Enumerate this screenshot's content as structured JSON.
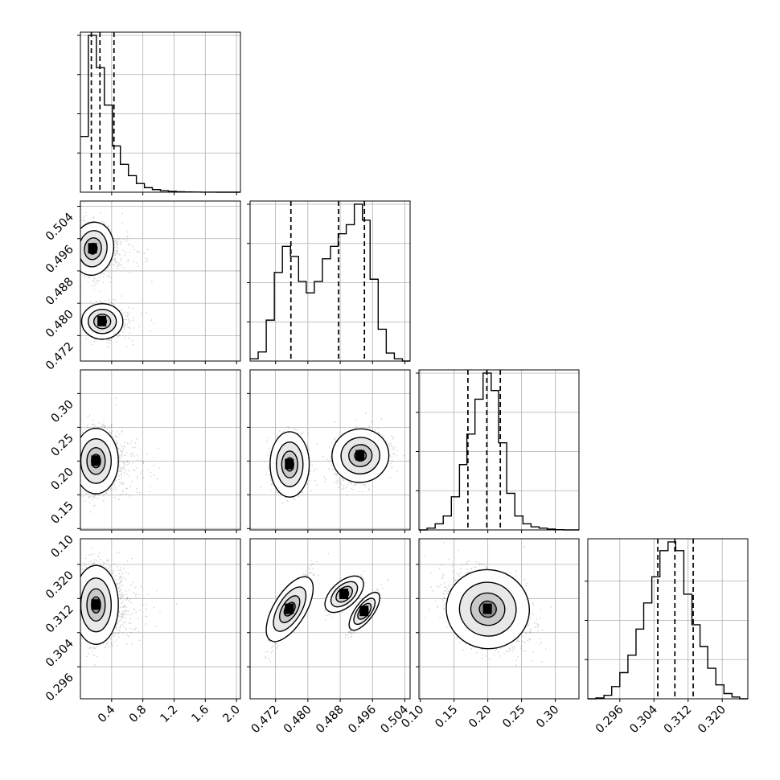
{
  "chart_data": {
    "type": "corner",
    "title": "",
    "parameters": [
      "",
      "",
      "",
      ""
    ],
    "grid": true,
    "colors": {
      "line": "#000000",
      "grid": "#b0b0b0",
      "density": "#000000"
    },
    "panels_1d": [
      {
        "param_index": 0,
        "range": [
          0.0,
          2.05
        ],
        "hist_max": 1800,
        "bins": [
          [
            0.0,
            0.102,
            640
          ],
          [
            0.102,
            0.205,
            1800
          ],
          [
            0.205,
            0.307,
            1430
          ],
          [
            0.307,
            0.41,
            1000
          ],
          [
            0.41,
            0.512,
            530
          ],
          [
            0.512,
            0.615,
            320
          ],
          [
            0.615,
            0.717,
            190
          ],
          [
            0.717,
            0.82,
            100
          ],
          [
            0.82,
            0.922,
            52
          ],
          [
            0.922,
            1.025,
            30
          ],
          [
            1.025,
            1.127,
            17
          ],
          [
            1.127,
            1.23,
            10
          ],
          [
            1.23,
            1.332,
            5
          ],
          [
            1.332,
            1.435,
            3
          ],
          [
            1.435,
            1.537,
            2
          ],
          [
            1.537,
            1.64,
            1
          ],
          [
            1.64,
            1.742,
            1
          ],
          [
            1.742,
            1.845,
            0
          ],
          [
            1.845,
            1.947,
            0
          ],
          [
            1.947,
            2.05,
            0
          ]
        ],
        "quantiles": [
          0.14,
          0.25,
          0.43
        ],
        "xticks": [
          "0.4",
          "0.8",
          "1.2",
          "1.6",
          "2.0"
        ],
        "xtick_values": [
          0.4,
          0.8,
          1.2,
          1.6,
          2.0
        ],
        "ytick_fracs": [
          0.245,
          0.49,
          0.735,
          0.98
        ]
      },
      {
        "param_index": 1,
        "range": [
          0.4657,
          0.5053
        ],
        "hist_max": 1380,
        "bins": [
          [
            0.4657,
            0.4677,
            20
          ],
          [
            0.4677,
            0.4697,
            80
          ],
          [
            0.4697,
            0.4717,
            360
          ],
          [
            0.4717,
            0.4737,
            780
          ],
          [
            0.4737,
            0.4757,
            1010
          ],
          [
            0.4757,
            0.4777,
            920
          ],
          [
            0.4777,
            0.4796,
            700
          ],
          [
            0.4796,
            0.4816,
            600
          ],
          [
            0.4816,
            0.4836,
            700
          ],
          [
            0.4836,
            0.4856,
            900
          ],
          [
            0.4856,
            0.4875,
            1010
          ],
          [
            0.4875,
            0.4895,
            1120
          ],
          [
            0.4895,
            0.4915,
            1200
          ],
          [
            0.4915,
            0.4935,
            1380
          ],
          [
            0.4935,
            0.4954,
            1240
          ],
          [
            0.4954,
            0.4974,
            720
          ],
          [
            0.4974,
            0.4994,
            280
          ],
          [
            0.4994,
            0.5014,
            70
          ],
          [
            0.5014,
            0.5034,
            20
          ],
          [
            0.5034,
            0.5053,
            0
          ]
        ],
        "quantiles": [
          0.4758,
          0.4876,
          0.494
        ],
        "xticks": [
          "0.472",
          "0.480",
          "0.488",
          "0.496",
          "0.504"
        ],
        "xtick_values": [
          0.472,
          0.48,
          0.488,
          0.496,
          0.504
        ],
        "ytick_fracs": [
          0.245,
          0.49,
          0.735,
          0.98
        ]
      },
      {
        "param_index": 2,
        "range": [
          0.098,
          0.335
        ],
        "hist_max": 1800,
        "bins": [
          [
            0.098,
            0.11,
            0
          ],
          [
            0.11,
            0.122,
            20
          ],
          [
            0.122,
            0.134,
            70
          ],
          [
            0.134,
            0.146,
            160
          ],
          [
            0.146,
            0.158,
            380
          ],
          [
            0.158,
            0.169,
            750
          ],
          [
            0.169,
            0.181,
            1100
          ],
          [
            0.181,
            0.193,
            1500
          ],
          [
            0.193,
            0.205,
            1800
          ],
          [
            0.205,
            0.216,
            1600
          ],
          [
            0.216,
            0.228,
            1000
          ],
          [
            0.228,
            0.24,
            420
          ],
          [
            0.24,
            0.252,
            160
          ],
          [
            0.252,
            0.264,
            70
          ],
          [
            0.264,
            0.276,
            35
          ],
          [
            0.276,
            0.288,
            20
          ],
          [
            0.288,
            0.3,
            10
          ],
          [
            0.3,
            0.312,
            3
          ],
          [
            0.312,
            0.323,
            0
          ],
          [
            0.323,
            0.335,
            0
          ]
        ],
        "quantiles": [
          0.1705,
          0.1985,
          0.2185
        ],
        "xticks": [
          "0.10",
          "0.15",
          "0.20",
          "0.25",
          "0.30"
        ],
        "xtick_values": [
          0.1,
          0.15,
          0.2,
          0.25,
          0.3
        ],
        "ytick_fracs": [
          0.245,
          0.49,
          0.735,
          0.98
        ]
      },
      {
        "param_index": 3,
        "range": [
          0.2885,
          0.326
        ],
        "hist_max": 1800,
        "bins": [
          [
            0.2885,
            0.2904,
            0
          ],
          [
            0.2904,
            0.2923,
            10
          ],
          [
            0.2923,
            0.2941,
            40
          ],
          [
            0.2941,
            0.296,
            140
          ],
          [
            0.296,
            0.2979,
            300
          ],
          [
            0.2979,
            0.2998,
            500
          ],
          [
            0.2998,
            0.3016,
            800
          ],
          [
            0.3016,
            0.3035,
            1100
          ],
          [
            0.3035,
            0.3054,
            1400
          ],
          [
            0.3054,
            0.3073,
            1700
          ],
          [
            0.3073,
            0.3091,
            1800
          ],
          [
            0.3091,
            0.311,
            1700
          ],
          [
            0.311,
            0.3129,
            1200
          ],
          [
            0.3129,
            0.3148,
            850
          ],
          [
            0.3148,
            0.3166,
            600
          ],
          [
            0.3166,
            0.3185,
            350
          ],
          [
            0.3185,
            0.3204,
            160
          ],
          [
            0.3204,
            0.3223,
            60
          ],
          [
            0.3223,
            0.3241,
            20
          ],
          [
            0.3241,
            0.326,
            0
          ]
        ],
        "quantiles": [
          0.3049,
          0.3089,
          0.3132
        ],
        "xticks": [
          "0.296",
          "0.304",
          "0.312",
          "0.320"
        ],
        "xtick_values": [
          0.296,
          0.304,
          0.312,
          0.32
        ],
        "ytick_fracs": [
          0.245,
          0.49,
          0.735
        ]
      }
    ],
    "panels_2d": [
      {
        "x_param": 0,
        "y_param": 1,
        "modes": [
          {
            "x": 0.16,
            "y": 0.4935,
            "sx": 0.12,
            "sy": 0.003,
            "rho": -0.2,
            "n": 3800
          },
          {
            "x": 0.28,
            "y": 0.4755,
            "sx": 0.12,
            "sy": 0.002,
            "rho": 0.0,
            "n": 2200
          }
        ],
        "yticks": [
          "0.472",
          "0.480",
          "0.488",
          "0.496",
          "0.504"
        ],
        "ytick_values": [
          0.472,
          0.48,
          0.488,
          0.496,
          0.504
        ]
      },
      {
        "x_param": 0,
        "y_param": 2,
        "modes": [
          {
            "x": 0.2,
            "y": 0.2,
            "sx": 0.13,
            "sy": 0.022,
            "rho": 0.0,
            "n": 6000
          }
        ],
        "yticks": [
          "0.10",
          "0.15",
          "0.20",
          "0.25",
          "0.30"
        ],
        "ytick_values": [
          0.1,
          0.15,
          0.2,
          0.25,
          0.3
        ]
      },
      {
        "x_param": 0,
        "y_param": 3,
        "modes": [
          {
            "x": 0.2,
            "y": 0.3105,
            "sx": 0.13,
            "sy": 0.0042,
            "rho": 0.0,
            "n": 6000
          }
        ],
        "yticks": [
          "0.296",
          "0.304",
          "0.312",
          "0.320"
        ],
        "ytick_values": [
          0.296,
          0.304,
          0.312,
          0.32
        ]
      },
      {
        "x_param": 1,
        "y_param": 2,
        "modes": [
          {
            "x": 0.4755,
            "y": 0.195,
            "sx": 0.0022,
            "sy": 0.022,
            "rho": 0.0,
            "n": 2200
          },
          {
            "x": 0.493,
            "y": 0.208,
            "sx": 0.0032,
            "sy": 0.018,
            "rho": 0.3,
            "n": 3800
          }
        ],
        "yticks": [],
        "ytick_values": [
          0.1,
          0.15,
          0.2,
          0.25,
          0.3
        ]
      },
      {
        "x_param": 1,
        "y_param": 3,
        "modes": [
          {
            "x": 0.4755,
            "y": 0.3095,
            "sx": 0.0022,
            "sy": 0.0038,
            "rho": 0.9,
            "n": 2200
          },
          {
            "x": 0.489,
            "y": 0.313,
            "sx": 0.002,
            "sy": 0.002,
            "rho": 0.85,
            "n": 1600
          },
          {
            "x": 0.494,
            "y": 0.309,
            "sx": 0.0016,
            "sy": 0.0022,
            "rho": 0.93,
            "n": 2200
          }
        ],
        "yticks": [],
        "ytick_values": [
          0.296,
          0.304,
          0.312,
          0.32
        ]
      },
      {
        "x_param": 2,
        "y_param": 3,
        "modes": [
          {
            "x": 0.2,
            "y": 0.3095,
            "sx": 0.028,
            "sy": 0.0042,
            "rho": -0.3,
            "n": 6000
          }
        ],
        "yticks": [],
        "ytick_values": [
          0.296,
          0.304,
          0.312,
          0.32
        ]
      }
    ]
  }
}
